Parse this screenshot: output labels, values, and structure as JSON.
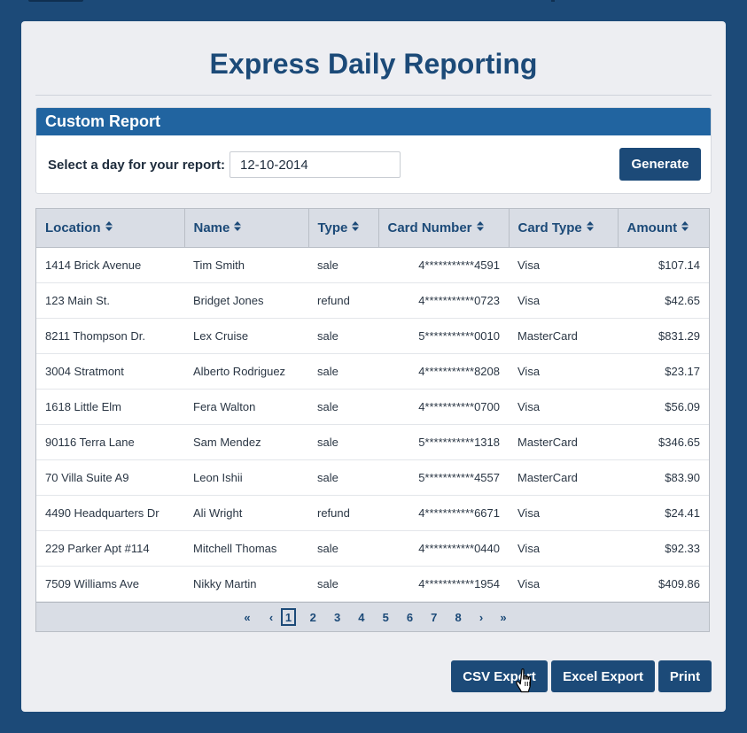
{
  "page": {
    "title": "Express Daily Reporting"
  },
  "report": {
    "header": "Custom Report",
    "label": "Select a day for your report:",
    "date_value": "12-10-2014",
    "generate_label": "Generate"
  },
  "table": {
    "columns": [
      "Location",
      "Name",
      "Type",
      "Card Number",
      "Card Type",
      "Amount"
    ],
    "rows": [
      {
        "location": "1414 Brick Avenue",
        "name": "Tim Smith",
        "type": "sale",
        "card_number": "4***********4591",
        "card_type": "Visa",
        "amount": "$107.14"
      },
      {
        "location": "123 Main St.",
        "name": "Bridget Jones",
        "type": "refund",
        "card_number": "4***********0723",
        "card_type": "Visa",
        "amount": "$42.65"
      },
      {
        "location": "8211 Thompson Dr.",
        "name": "Lex Cruise",
        "type": "sale",
        "card_number": "5***********0010",
        "card_type": "MasterCard",
        "amount": "$831.29"
      },
      {
        "location": "3004 Stratmont",
        "name": "Alberto Rodriguez",
        "type": "sale",
        "card_number": "4***********8208",
        "card_type": "Visa",
        "amount": "$23.17"
      },
      {
        "location": "1618 Little Elm",
        "name": "Fera Walton",
        "type": "sale",
        "card_number": "4***********0700",
        "card_type": "Visa",
        "amount": "$56.09"
      },
      {
        "location": "90116 Terra Lane",
        "name": "Sam Mendez",
        "type": "sale",
        "card_number": "5***********1318",
        "card_type": "MasterCard",
        "amount": "$346.65"
      },
      {
        "location": "70 Villa Suite A9",
        "name": "Leon Ishii",
        "type": "sale",
        "card_number": "5***********4557",
        "card_type": "MasterCard",
        "amount": "$83.90"
      },
      {
        "location": "4490 Headquarters Dr",
        "name": "Ali Wright",
        "type": "refund",
        "card_number": "4***********6671",
        "card_type": "Visa",
        "amount": "$24.41"
      },
      {
        "location": "229 Parker Apt #114",
        "name": "Mitchell Thomas",
        "type": "sale",
        "card_number": "4***********0440",
        "card_type": "Visa",
        "amount": "$92.33"
      },
      {
        "location": "7509 Williams Ave",
        "name": "Nikky Martin",
        "type": "sale",
        "card_number": "4***********1954",
        "card_type": "Visa",
        "amount": "$409.86"
      }
    ]
  },
  "pagination": {
    "first": "«",
    "prev": "‹",
    "pages": [
      "1",
      "2",
      "3",
      "4",
      "5",
      "6",
      "7",
      "8"
    ],
    "active": "1",
    "next": "›",
    "last": "»"
  },
  "actions": {
    "csv": "CSV Export",
    "excel": "Excel Export",
    "print": "Print"
  },
  "icons": {
    "sort": "sort-icon",
    "cursor": "hand-pointer-icon"
  },
  "colors": {
    "primary": "#1c4a78",
    "header_blue": "#2164a0",
    "panel": "#edeef2"
  }
}
